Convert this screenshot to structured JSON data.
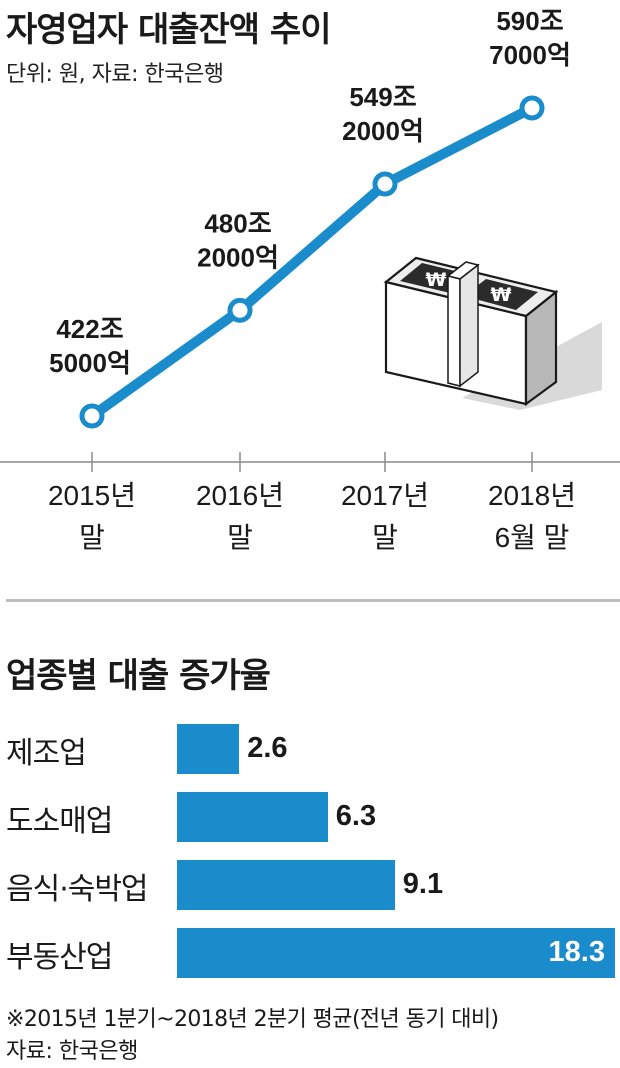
{
  "chart_data": [
    {
      "type": "line",
      "title": "자영업자 대출잔액 추이",
      "subtitle": "단위: 원, 자료: 한국은행",
      "categories": [
        [
          "2015년",
          "말"
        ],
        [
          "2016년",
          "말"
        ],
        [
          "2017년",
          "말"
        ],
        [
          "2018년",
          "6월 말"
        ]
      ],
      "values": [
        422.5,
        480.2,
        549.2,
        590.7
      ],
      "value_labels": [
        [
          "422조",
          "5000억"
        ],
        [
          "480조",
          "2000억"
        ],
        [
          "549조",
          "2000억"
        ],
        [
          "590조",
          "7000억"
        ]
      ],
      "ylim": [
        380,
        620
      ],
      "color": "#1a8ccc",
      "grid": false,
      "decoration": "money-bundle-icon"
    },
    {
      "type": "bar",
      "orientation": "horizontal",
      "title": "업종별 대출 증가율",
      "categories": [
        "제조업",
        "도소매업",
        "음식·숙박업",
        "부동산업"
      ],
      "values": [
        2.6,
        6.3,
        9.1,
        18.3
      ],
      "value_labels": [
        "2.6",
        "6.3",
        "9.1",
        "18.3"
      ],
      "xlim": [
        0,
        18.3
      ],
      "color": "#1a8ccc",
      "grid": false
    }
  ],
  "notes": {
    "footnote": "※2015년 1분기~2018년 2분기 평균(전년 동기 대비)",
    "source": "자료: 한국은행"
  }
}
